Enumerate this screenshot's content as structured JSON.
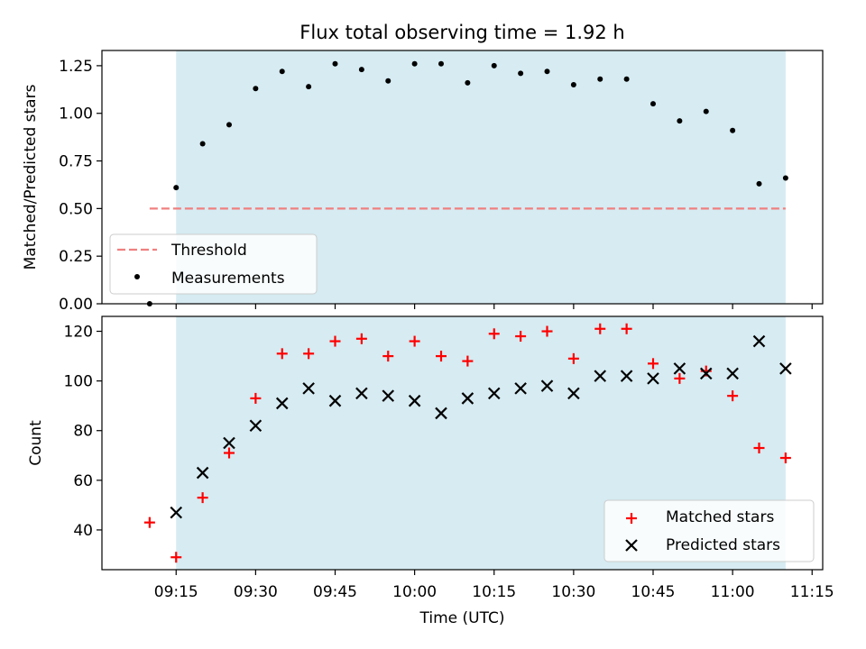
{
  "chart_data": [
    {
      "type": "scatter",
      "title": "Flux total observing time = 1.92 h",
      "xlabel": "",
      "ylabel": "Matched/Predicted stars",
      "xlim": [
        "09:01",
        "11:17"
      ],
      "ylim": [
        0.0,
        1.33
      ],
      "yticks": [
        0.0,
        0.25,
        0.5,
        0.75,
        1.0,
        1.25
      ],
      "ytick_labels": [
        "0.00",
        "0.25",
        "0.50",
        "0.75",
        "1.00",
        "1.25"
      ],
      "shaded_span": [
        "09:15",
        "11:10"
      ],
      "shade_color": "#add8e6",
      "threshold": {
        "name": "Threshold",
        "value": 0.5,
        "x_range": [
          "09:10",
          "11:10"
        ],
        "color": "#f08080",
        "style": "dashed"
      },
      "series": [
        {
          "name": "Measurements",
          "color": "#000000",
          "marker": "dot",
          "x": [
            "09:10",
            "09:15",
            "09:20",
            "09:25",
            "09:30",
            "09:35",
            "09:40",
            "09:45",
            "09:50",
            "09:55",
            "10:00",
            "10:05",
            "10:10",
            "10:15",
            "10:20",
            "10:25",
            "10:30",
            "10:35",
            "10:40",
            "10:45",
            "10:50",
            "10:55",
            "11:00",
            "11:05",
            "11:10"
          ],
          "y": [
            0.0,
            0.61,
            0.84,
            0.94,
            1.13,
            1.22,
            1.14,
            1.26,
            1.23,
            1.17,
            1.26,
            1.26,
            1.16,
            1.25,
            1.21,
            1.22,
            1.15,
            1.18,
            1.18,
            1.05,
            0.96,
            1.01,
            0.91,
            0.63,
            0.66
          ]
        }
      ],
      "legend": {
        "placement": "lower-left",
        "entries": [
          "Threshold",
          "Measurements"
        ]
      },
      "grid": false
    },
    {
      "type": "scatter",
      "title": "",
      "xlabel": "Time (UTC)",
      "ylabel": "Count",
      "xlim": [
        "09:01",
        "11:17"
      ],
      "ylim": [
        24,
        126
      ],
      "yticks": [
        40,
        60,
        80,
        100,
        120
      ],
      "xticks": [
        "09:15",
        "09:30",
        "09:45",
        "10:00",
        "10:15",
        "10:30",
        "10:45",
        "11:00",
        "11:15"
      ],
      "shaded_span": [
        "09:15",
        "11:10"
      ],
      "shade_color": "#add8e6",
      "series": [
        {
          "name": "Matched stars",
          "color": "#ff0000",
          "marker": "plus",
          "x": [
            "09:10",
            "09:15",
            "09:20",
            "09:25",
            "09:30",
            "09:35",
            "09:40",
            "09:45",
            "09:50",
            "09:55",
            "10:00",
            "10:05",
            "10:10",
            "10:15",
            "10:20",
            "10:25",
            "10:30",
            "10:35",
            "10:40",
            "10:45",
            "10:50",
            "10:55",
            "11:00",
            "11:05",
            "11:10"
          ],
          "y": [
            43,
            29,
            53,
            71,
            93,
            111,
            111,
            116,
            117,
            110,
            116,
            110,
            108,
            119,
            118,
            120,
            109,
            121,
            121,
            107,
            101,
            104,
            94,
            73,
            69
          ]
        },
        {
          "name": "Predicted stars",
          "color": "#000000",
          "marker": "x",
          "x": [
            "09:15",
            "09:20",
            "09:25",
            "09:30",
            "09:35",
            "09:40",
            "09:45",
            "09:50",
            "09:55",
            "10:00",
            "10:05",
            "10:10",
            "10:15",
            "10:20",
            "10:25",
            "10:30",
            "10:35",
            "10:40",
            "10:45",
            "10:50",
            "10:55",
            "11:00",
            "11:05",
            "11:10"
          ],
          "y": [
            47,
            63,
            75,
            82,
            91,
            97,
            92,
            95,
            94,
            92,
            87,
            93,
            95,
            97,
            98,
            95,
            102,
            102,
            101,
            105,
            103,
            103,
            116,
            105
          ]
        }
      ],
      "legend": {
        "placement": "lower-right",
        "entries": [
          "Matched stars",
          "Predicted stars"
        ]
      },
      "grid": false
    }
  ]
}
